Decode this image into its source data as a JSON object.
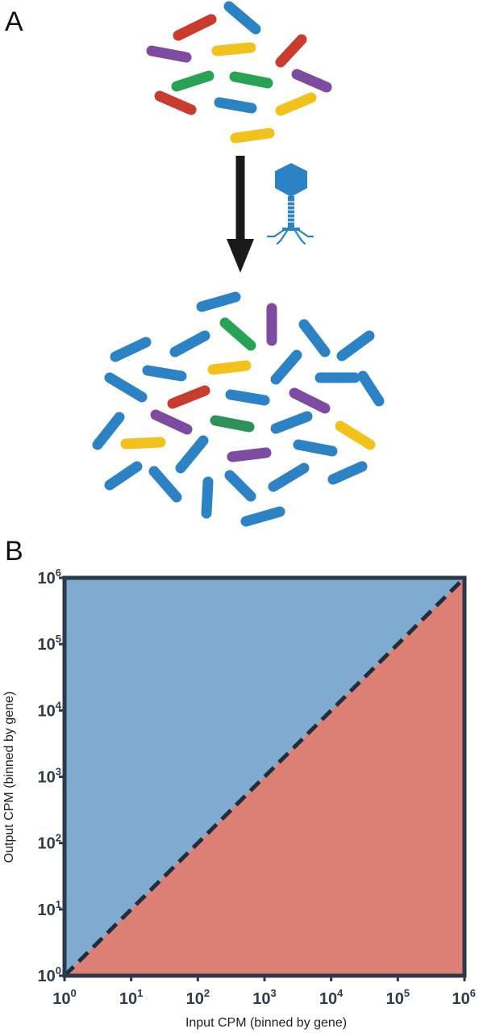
{
  "panel_a": {
    "label": "A",
    "colors": {
      "blue": "#2b83c6",
      "red": "#c93b2f",
      "purple": "#7d4ba2",
      "yellow": "#f2c21b",
      "green": "#27a353",
      "dark_green": "#2e9158",
      "arrow": "#1a1a1a"
    },
    "icons": [
      "bacteria-population-icon",
      "down-arrow-icon",
      "bacteriophage-icon"
    ]
  },
  "panel_b": {
    "label": "B",
    "colors": {
      "upper_fill": "#7fabd1",
      "lower_fill": "#dc7f75",
      "frame": "#2b3a4a",
      "diagonal": "#1f2d3d"
    }
  },
  "chart_data": {
    "type": "area",
    "title": "",
    "xlabel": "Input CPM (binned by gene)",
    "ylabel": "Output CPM (binned by gene)",
    "x_scale": "log10",
    "y_scale": "log10",
    "xlim": [
      1,
      1000000
    ],
    "ylim": [
      1,
      1000000
    ],
    "x_ticks": [
      {
        "base": "10",
        "exp": "0"
      },
      {
        "base": "10",
        "exp": "1"
      },
      {
        "base": "10",
        "exp": "2"
      },
      {
        "base": "10",
        "exp": "3"
      },
      {
        "base": "10",
        "exp": "4"
      },
      {
        "base": "10",
        "exp": "5"
      },
      {
        "base": "10",
        "exp": "6"
      }
    ],
    "y_ticks": [
      {
        "base": "10",
        "exp": "0"
      },
      {
        "base": "10",
        "exp": "1"
      },
      {
        "base": "10",
        "exp": "2"
      },
      {
        "base": "10",
        "exp": "3"
      },
      {
        "base": "10",
        "exp": "4"
      },
      {
        "base": "10",
        "exp": "5"
      },
      {
        "base": "10",
        "exp": "6"
      }
    ],
    "diagonal_line": {
      "x": [
        1,
        1000000
      ],
      "y": [
        1,
        1000000
      ],
      "style": "dashed"
    },
    "regions": [
      {
        "position": "above diagonal",
        "color": "#7fabd1"
      },
      {
        "position": "below diagonal",
        "color": "#dc7f75"
      }
    ],
    "grid": false
  }
}
